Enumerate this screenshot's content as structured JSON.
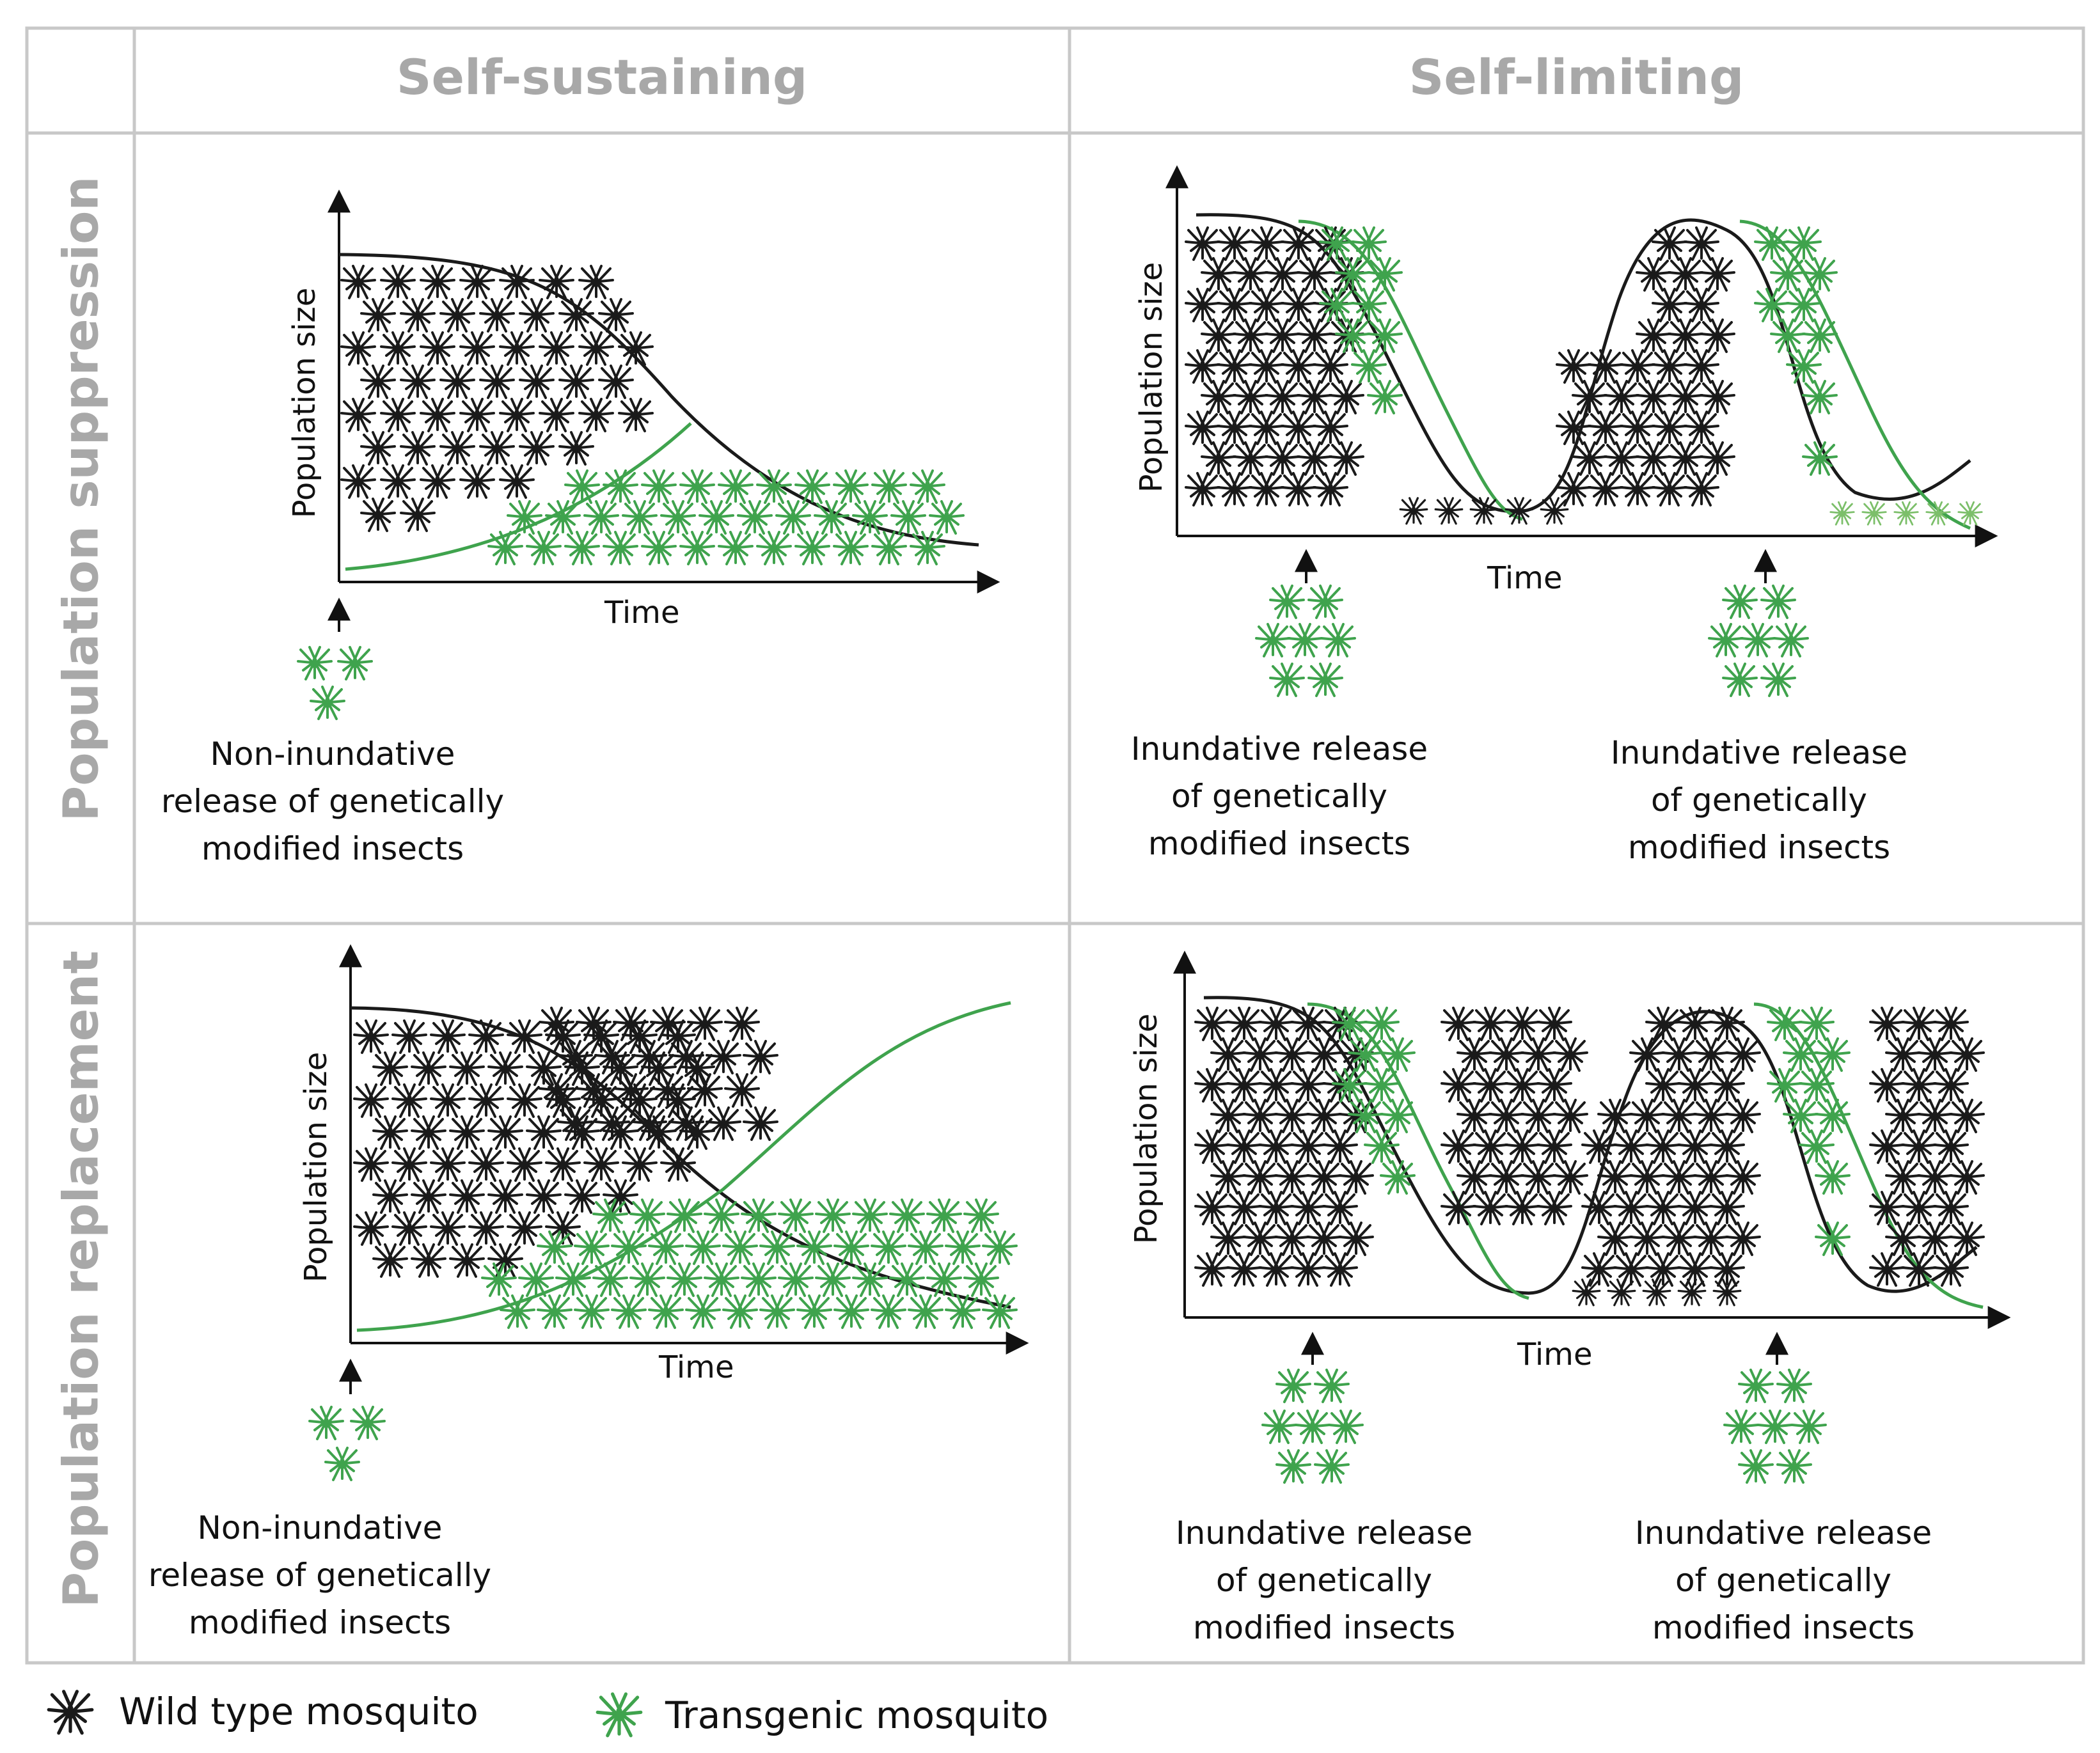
{
  "columns": {
    "self_sustaining": "Self-sustaining",
    "self_limiting": "Self-limiting"
  },
  "rows": {
    "suppression": "Population suppression",
    "replacement": "Population replacement"
  },
  "axes": {
    "y_label": "Population size",
    "x_label": "Time"
  },
  "captions": {
    "non_inundative": "Non-inundative\nrelease of genetically\nmodified insects",
    "inundative": "Inundative release\nof genetically\nmodified insects"
  },
  "legend": {
    "wild": "Wild type mosquito",
    "transgenic": "Transgenic mosquito"
  },
  "colors": {
    "wild": "#1a1a1a",
    "transgenic": "#3fa34d",
    "transgenic_light": "#7cbf6a",
    "grid": "#c8c8c8",
    "header_text": "#a8a8a8"
  },
  "icons": {
    "wild": "mosquito-icon",
    "transgenic": "mosquito-icon"
  }
}
